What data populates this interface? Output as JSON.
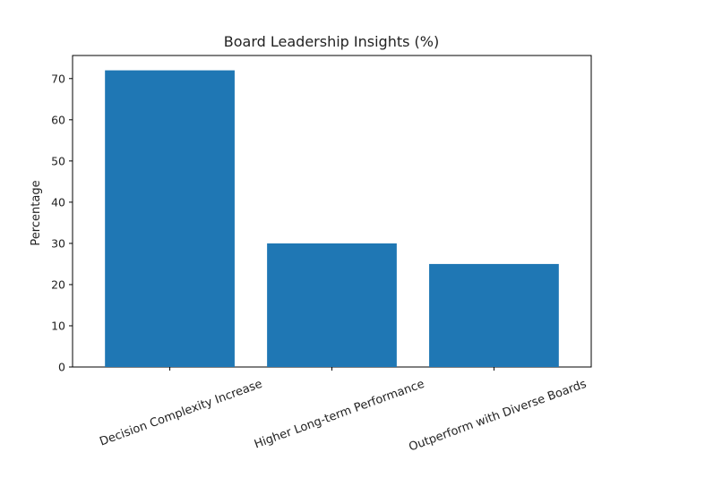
{
  "chart_data": {
    "type": "bar",
    "title": "Board Leadership Insights (%)",
    "xlabel": "",
    "ylabel": "Percentage",
    "categories": [
      "Decision Complexity Increase",
      "Higher Long-term Performance",
      "Outperform with Diverse Boards"
    ],
    "values": [
      72,
      30,
      25
    ],
    "ylim": [
      0,
      75.6
    ],
    "yticks": [
      0,
      10,
      20,
      30,
      40,
      50,
      60,
      70
    ],
    "bar_color": "#1f77b4",
    "grid": false,
    "legend": "none"
  }
}
